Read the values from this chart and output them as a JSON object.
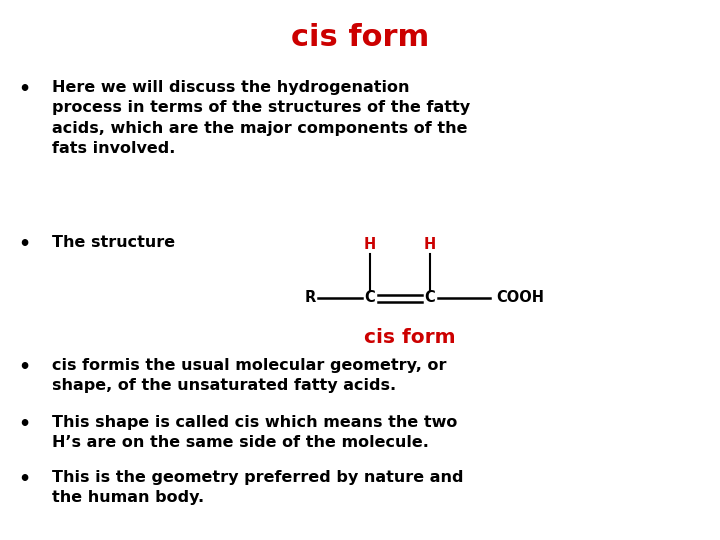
{
  "title": "cis form",
  "title_color": "#cc0000",
  "title_fontsize": 22,
  "background_color": "#ffffff",
  "text_color": "#000000",
  "red_color": "#cc0000",
  "bullet1": "Here we will discuss the hydrogenation\nprocess in terms of the structures of the fatty\nacids, which are the major components of the\nfats involved.",
  "bullet2": "The structure",
  "bullet3": "cis formis the usual molecular geometry, or\nshape, of the unsaturated fatty acids.",
  "bullet4": "This shape is called cis which means the two\nH’s are on the same side of the molecule.",
  "bullet5": "This is the geometry preferred by nature and\nthe human body.",
  "diagram_label": "cis form",
  "bullet_fontsize": 11.5,
  "figsize": [
    7.2,
    5.4
  ],
  "dpi": 100
}
